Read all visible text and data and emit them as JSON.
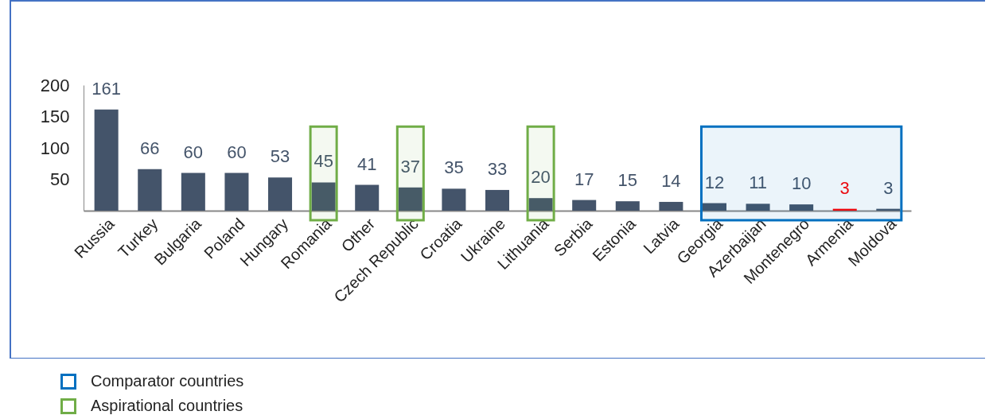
{
  "chart_data": {
    "type": "bar",
    "categories": [
      "Russia",
      "Turkey",
      "Bulgaria",
      "Poland",
      "Hungary",
      "Romania",
      "Other",
      "Czech Republic",
      "Croatia",
      "Ukraine",
      "Lithuania",
      "Serbia",
      "Estonia",
      "Latvia",
      "Georgia",
      "Azerbaijan",
      "Montenegro",
      "Armenia",
      "Moldova"
    ],
    "values": [
      161,
      66,
      60,
      60,
      53,
      45,
      41,
      37,
      35,
      33,
      20,
      17,
      15,
      14,
      12,
      11,
      10,
      3,
      3
    ],
    "colors": [
      "#44546a",
      "#44546a",
      "#44546a",
      "#44546a",
      "#44546a",
      "#44546a",
      "#44546a",
      "#44546a",
      "#44546a",
      "#44546a",
      "#44546a",
      "#44546a",
      "#44546a",
      "#44546a",
      "#44546a",
      "#44546a",
      "#44546a",
      "#ff0000",
      "#44546a"
    ],
    "data_labels": true,
    "legend": "bottom left",
    "ylim": [
      0,
      200
    ],
    "yticks": [
      50,
      100,
      150,
      200
    ],
    "grid": false,
    "bands": [
      {
        "axis": "x",
        "from": "Georgia",
        "to": "Moldova",
        "label": "Comparator countries",
        "color": "#0070c0"
      },
      {
        "axis": "x",
        "from": "Romania",
        "to": "Romania",
        "label": "Aspirational countries",
        "color": "#70ad47"
      },
      {
        "axis": "x",
        "from": "Czech Republic",
        "to": "Czech Republic",
        "color": "#70ad47"
      },
      {
        "axis": "x",
        "from": "Lithuania",
        "to": "Lithuania",
        "color": "#70ad47"
      }
    ]
  }
}
